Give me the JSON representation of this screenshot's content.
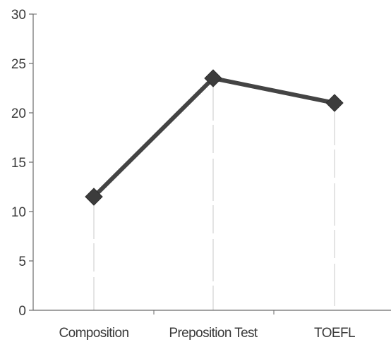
{
  "chart_data": {
    "type": "line",
    "title": "",
    "xlabel": "",
    "ylabel": "",
    "categories": [
      "Composition",
      "Preposition Test",
      "TOEFL"
    ],
    "series": [
      {
        "values": [
          11.5,
          23.5,
          21
        ],
        "color": "#444444",
        "marker": "diamond"
      }
    ],
    "ylim": [
      0,
      30
    ],
    "yticks": [
      0,
      5,
      10,
      15,
      20,
      25,
      30
    ],
    "grid": "vertical drop lines at categories",
    "legend": "none"
  }
}
